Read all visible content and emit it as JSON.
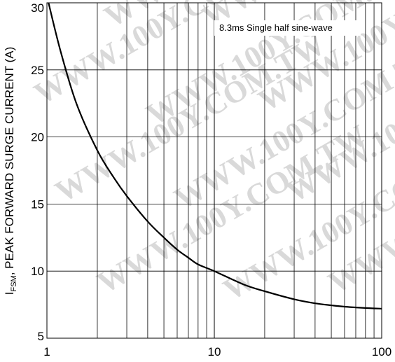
{
  "chart_data": {
    "type": "line",
    "x_scale": "log",
    "xlim": [
      1,
      100
    ],
    "ylim": [
      5,
      30
    ],
    "grid": true,
    "ylabel_main": "I",
    "ylabel_sub": "FSM",
    "ylabel_rest": ", PEAK FORWARD SURGE CURRENT (A)",
    "x_tick_labels": [
      "1",
      "10",
      "100"
    ],
    "x_ticks": [
      1,
      10,
      100
    ],
    "y_tick_labels": [
      "5",
      "10",
      "15",
      "20",
      "25",
      "30"
    ],
    "y_ticks": [
      5,
      10,
      15,
      20,
      25,
      30
    ],
    "annotation": "8.3ms Single half sine-wave",
    "watermark": "WWW.100Y.COM.TW",
    "series": [
      {
        "color": "#000000",
        "x": [
          1.0,
          1.2,
          1.5,
          2.0,
          2.5,
          3.0,
          4.0,
          5.0,
          6.0,
          7.0,
          8.0,
          10.0,
          15.0,
          20.0,
          30.0,
          40.0,
          50.0,
          60.0,
          80.0,
          100.0
        ],
        "y": [
          30.5,
          26.5,
          22.5,
          19.0,
          17.0,
          15.6,
          13.7,
          12.5,
          11.6,
          11.0,
          10.5,
          10.0,
          9.0,
          8.5,
          7.9,
          7.6,
          7.45,
          7.35,
          7.25,
          7.2
        ]
      }
    ]
  }
}
